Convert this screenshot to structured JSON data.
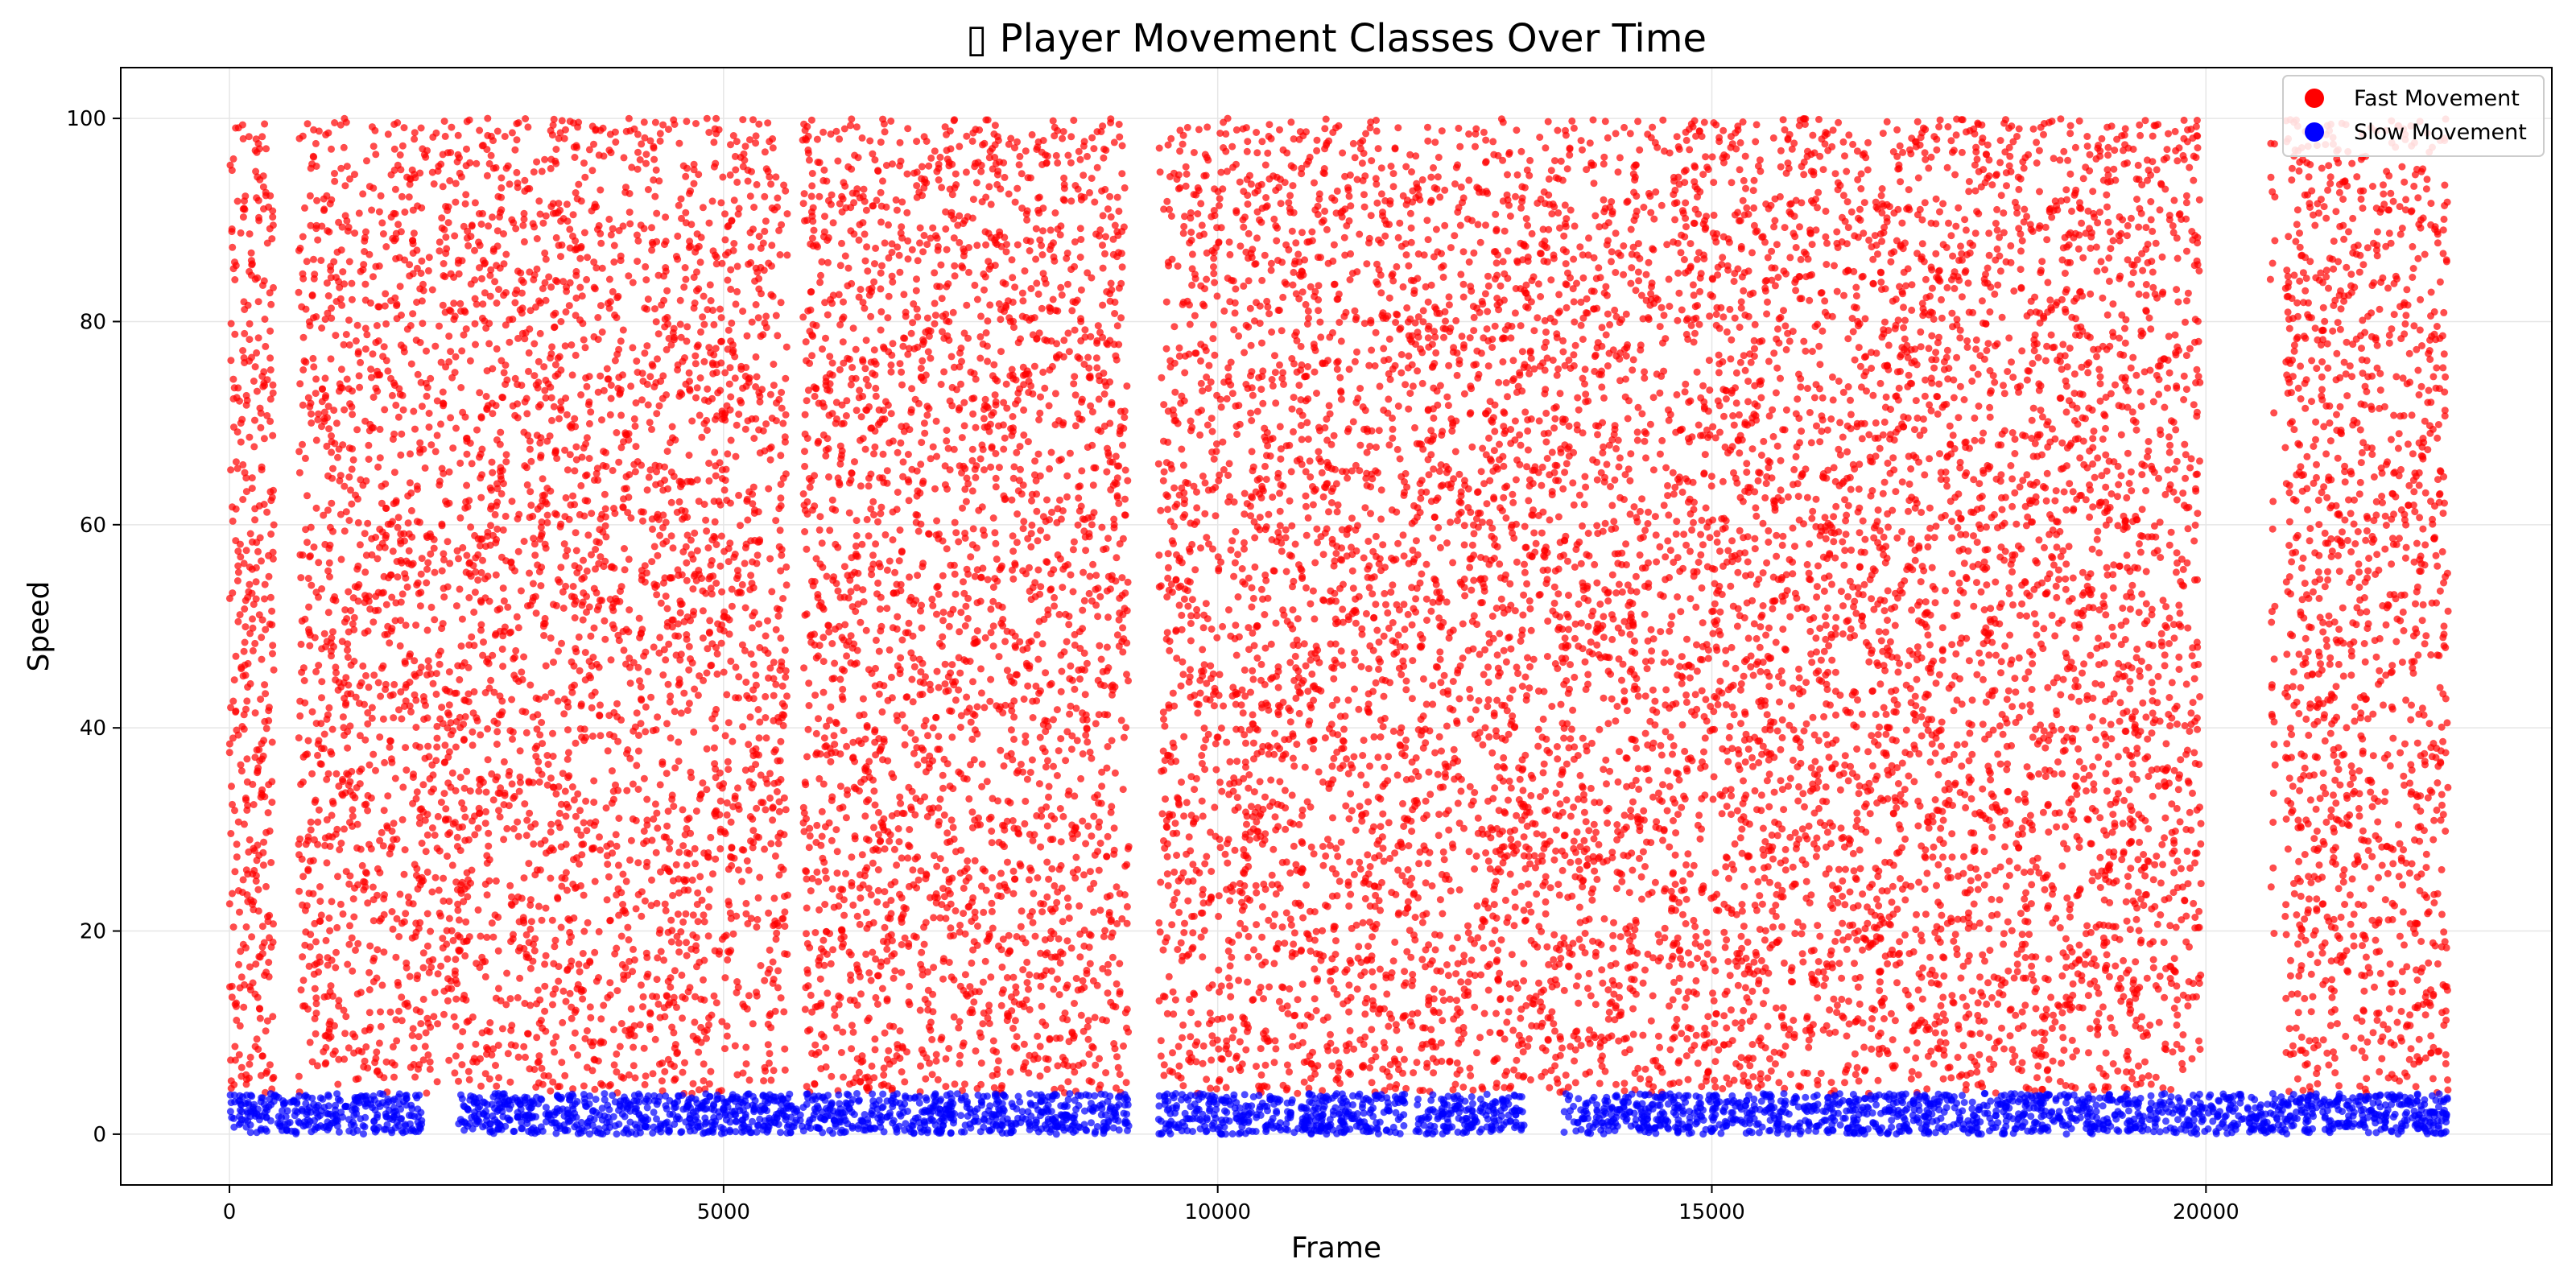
{
  "chart_data": {
    "type": "scatter",
    "title": "▯ Player Movement Classes Over Time",
    "xlabel": "Frame",
    "ylabel": "Speed",
    "xlim": [
      -1100,
      23500
    ],
    "ylim": [
      -5,
      105
    ],
    "xticks": [
      0,
      5000,
      10000,
      15000,
      20000
    ],
    "yticks": [
      0,
      20,
      40,
      60,
      80,
      100
    ],
    "grid": true,
    "legend_position": "top-right",
    "series": [
      {
        "name": "Fast Movement",
        "color": "#ff0000",
        "y_range": [
          4,
          100
        ],
        "x_segments": [
          [
            0,
            450
          ],
          [
            700,
            9100
          ],
          [
            9400,
            22450
          ]
        ],
        "x_gaps": [
          [
            5650,
            5800
          ],
          [
            12500,
            12530
          ],
          [
            19950,
            20650
          ],
          [
            20700,
            20800
          ]
        ],
        "point_count": 16000
      },
      {
        "name": "Slow Movement",
        "color": "#0000ff",
        "y_range": [
          0,
          4
        ],
        "x_segments": [
          [
            0,
            9100
          ],
          [
            9400,
            22450
          ]
        ],
        "x_gaps": [
          [
            1950,
            2300
          ],
          [
            11900,
            12000
          ],
          [
            13100,
            13500
          ]
        ],
        "point_count": 3200
      }
    ]
  }
}
